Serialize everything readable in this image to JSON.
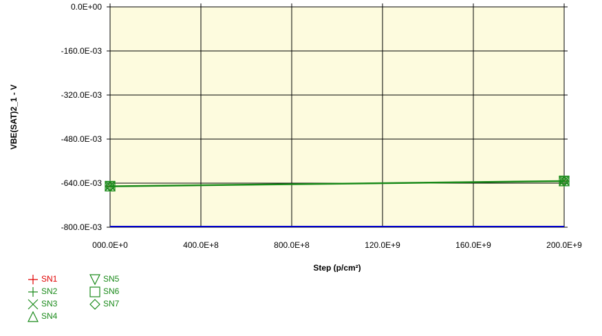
{
  "chart_data": {
    "type": "line",
    "title": "",
    "xlabel": "Step (p/cm²)",
    "ylabel": "VBE(SAT)2_1 - V",
    "xlim": [
      0,
      200000000000
    ],
    "ylim": [
      -0.8,
      0
    ],
    "grid": true,
    "plot_background": "#fdfbde",
    "x_ticks": [
      0,
      40000000000,
      80000000000,
      120000000000,
      160000000000,
      200000000000
    ],
    "x_tick_labels": [
      "000.0E+0",
      "400.0E+8",
      "800.0E+8",
      "120.0E+9",
      "160.0E+9",
      "200.0E+9"
    ],
    "y_ticks": [
      0,
      -0.16,
      -0.32,
      -0.48,
      -0.64,
      -0.8
    ],
    "y_tick_labels": [
      "0.0E+00",
      "-160.0E-03",
      "-320.0E-03",
      "-480.0E-03",
      "-640.0E-03",
      "-800.0E-03"
    ],
    "legend_position": "bottom-left",
    "series": [
      {
        "name": "SN1",
        "marker": "plus",
        "color": "#e00000",
        "x": [
          0,
          200000000000
        ],
        "y": [
          -0.651,
          -0.632
        ]
      },
      {
        "name": "SN2",
        "marker": "plus",
        "color": "#1a8a1a",
        "x": [
          0,
          200000000000
        ],
        "y": [
          -0.652,
          -0.633
        ]
      },
      {
        "name": "SN3",
        "marker": "x",
        "color": "#1a8a1a",
        "x": [
          0,
          200000000000
        ],
        "y": [
          -0.65,
          -0.631
        ]
      },
      {
        "name": "SN4",
        "marker": "triangle-up",
        "color": "#1a8a1a",
        "x": [
          0,
          200000000000
        ],
        "y": [
          -0.651,
          -0.632
        ]
      },
      {
        "name": "SN5",
        "marker": "triangle-down",
        "color": "#1a8a1a",
        "x": [
          0,
          200000000000
        ],
        "y": [
          -0.653,
          -0.634
        ]
      },
      {
        "name": "SN6",
        "marker": "square",
        "color": "#1a8a1a",
        "x": [
          0,
          200000000000
        ],
        "y": [
          -0.651,
          -0.632
        ]
      },
      {
        "name": "SN7",
        "marker": "diamond",
        "color": "#1a8a1a",
        "x": [
          0,
          200000000000
        ],
        "y": [
          -0.652,
          -0.633
        ]
      }
    ],
    "reference_line": {
      "y": -0.8,
      "color": "#0000cc"
    }
  }
}
